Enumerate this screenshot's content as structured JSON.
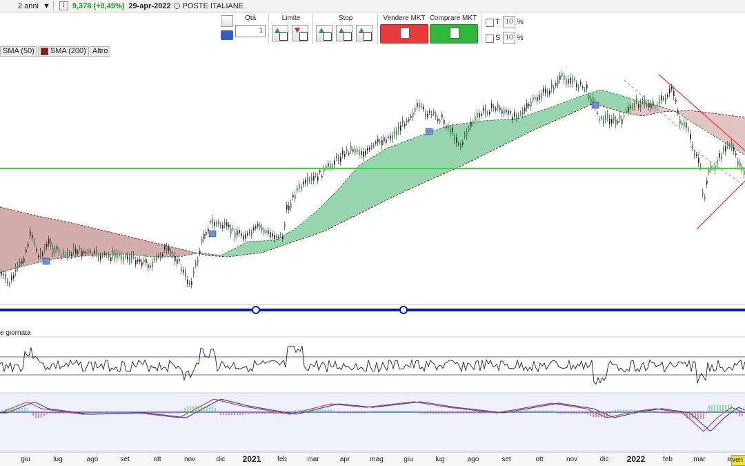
{
  "header": {
    "period": "2 anni",
    "price": "9,378 (+0,49%)",
    "date": "29-apr-2022",
    "market": "POSTE ITALIANE"
  },
  "toolbar": {
    "qty_label": "Qtà",
    "qty_value": "1",
    "limit_label": "Limite",
    "stop_label": "Stop",
    "sell_label": "Vendere MKT",
    "buy_label": "Comprare MKT",
    "t_label": "T",
    "t_value": "10",
    "s_label": "S",
    "s_value": "10",
    "pct": "%"
  },
  "legend": {
    "sma50": "SMA (50)",
    "sma200": "SMA (200)",
    "altro": "Altro"
  },
  "chart": {
    "oscillator_label": "e giornata",
    "x_axis": [
      "giu",
      "lug",
      "ago",
      "set",
      "ott",
      "nov",
      "dic",
      "2021",
      "feb",
      "mar",
      "apr",
      "mag",
      "giu",
      "lug",
      "ago",
      "set",
      "ott",
      "nov",
      "dic",
      "2022",
      "feb",
      "mar",
      "a"
    ],
    "x_bold": [
      "2021",
      "2022"
    ],
    "last_label": "ven",
    "colors": {
      "support_line": "#2ee02e",
      "separator": "#0a14c8",
      "bull_fill": "#3fb36a",
      "bear_fill": "#a85a5a",
      "channel": "#ff2a2a",
      "rsi_band": "#5560d8"
    }
  }
}
